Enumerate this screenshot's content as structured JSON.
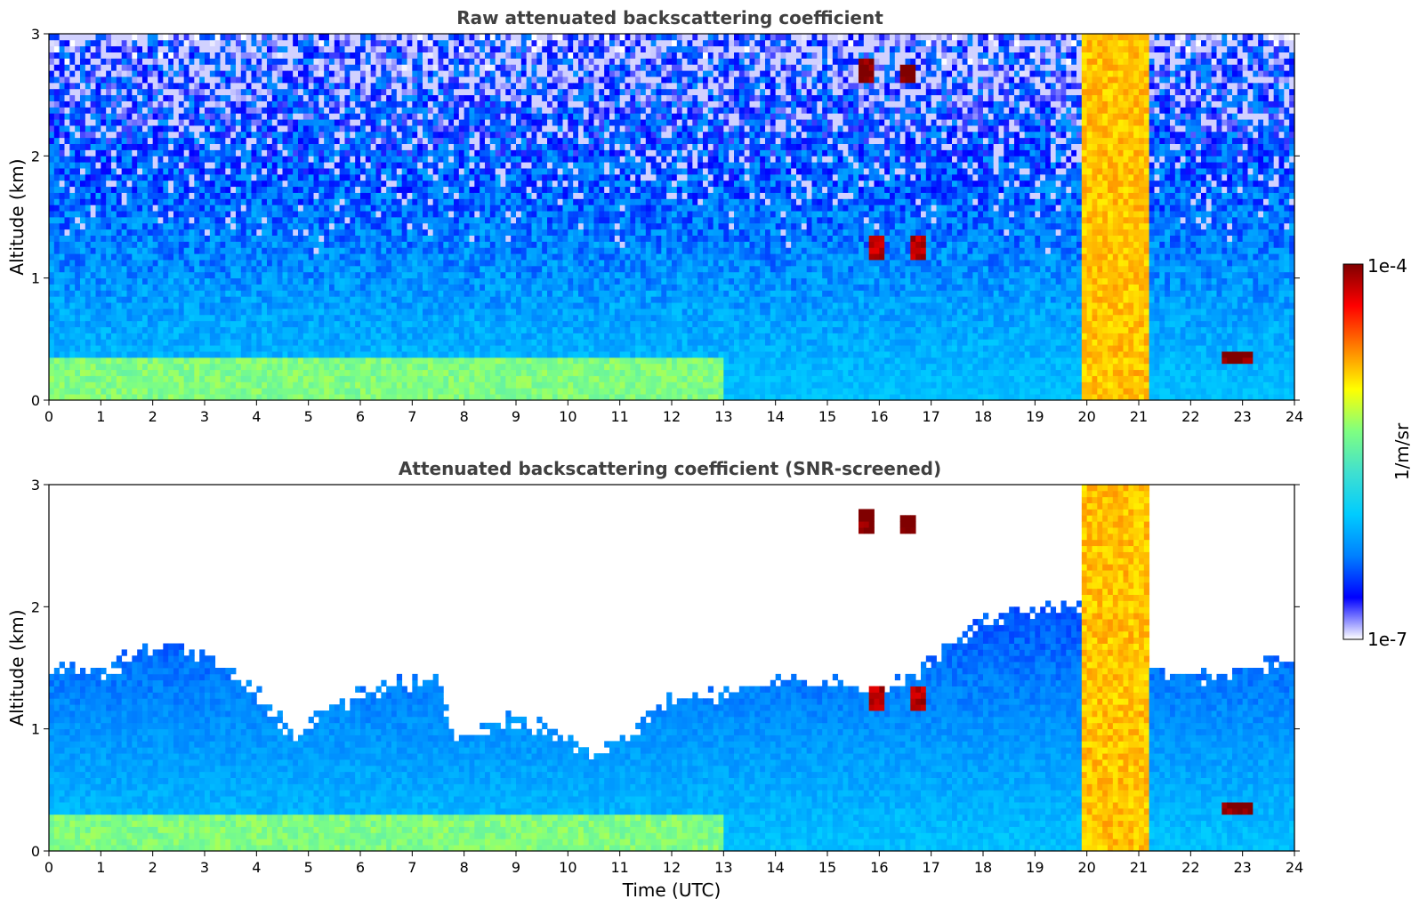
{
  "chart_data": [
    {
      "type": "heatmap",
      "title": "Raw attenuated backscattering coefficient",
      "xlabel": "",
      "ylabel": "Altitude (km)",
      "xlim": [
        0,
        24
      ],
      "ylim": [
        0,
        3
      ],
      "x_ticks": [
        "0",
        "1",
        "2",
        "3",
        "4",
        "5",
        "6",
        "7",
        "8",
        "9",
        "10",
        "11",
        "12",
        "13",
        "14",
        "15",
        "16",
        "17",
        "18",
        "19",
        "20",
        "21",
        "22",
        "23",
        "24"
      ],
      "y_ticks": [
        "0",
        "1",
        "2",
        "3"
      ],
      "grid": false,
      "noise_screened": false,
      "features": [
        {
          "kind": "surface-aerosol-layer",
          "x_range": [
            0,
            13
          ],
          "top_km": 0.35,
          "level": 0.55
        },
        {
          "kind": "elevated-cloud-patch",
          "x_range": [
            15.6,
            15.9
          ],
          "alt_range": [
            2.6,
            2.8
          ],
          "level": 1.0
        },
        {
          "kind": "elevated-cloud-patch",
          "x_range": [
            16.4,
            16.65
          ],
          "alt_range": [
            2.6,
            2.75
          ],
          "level": 1.0
        },
        {
          "kind": "low-cloud-patch",
          "x_range": [
            15.8,
            16.05
          ],
          "alt_range": [
            1.15,
            1.35
          ],
          "level": 0.95
        },
        {
          "kind": "low-cloud-patch",
          "x_range": [
            16.6,
            16.85
          ],
          "alt_range": [
            1.15,
            1.35
          ],
          "level": 0.95
        },
        {
          "kind": "precipitation-column",
          "x_range": [
            19.85,
            21.2
          ],
          "alt_range": [
            0,
            3
          ],
          "level": 0.72
        },
        {
          "kind": "cloud-layer",
          "x_range": [
            22.6,
            23.2
          ],
          "alt_range": [
            0.28,
            0.42
          ],
          "level": 1.0
        }
      ]
    },
    {
      "type": "heatmap",
      "title": "Attenuated backscattering coefficient (SNR-screened)",
      "xlabel": "Time (UTC)",
      "ylabel": "Altitude (km)",
      "xlim": [
        0,
        24
      ],
      "ylim": [
        0,
        3
      ],
      "x_ticks": [
        "0",
        "1",
        "2",
        "3",
        "4",
        "5",
        "6",
        "7",
        "8",
        "9",
        "10",
        "11",
        "12",
        "13",
        "14",
        "15",
        "16",
        "17",
        "18",
        "19",
        "20",
        "21",
        "22",
        "23",
        "24"
      ],
      "y_ticks": [
        "0",
        "1",
        "2",
        "3"
      ],
      "grid": false,
      "noise_screened": true,
      "screen_top_km": [
        [
          0,
          1.5
        ],
        [
          1,
          1.45
        ],
        [
          2,
          1.7
        ],
        [
          3,
          1.6
        ],
        [
          4,
          1.3
        ],
        [
          4.7,
          0.95
        ],
        [
          5.5,
          1.2
        ],
        [
          6.5,
          1.35
        ],
        [
          7.5,
          1.4
        ],
        [
          7.8,
          0.9
        ],
        [
          9,
          1.1
        ],
        [
          9.8,
          0.95
        ],
        [
          10.5,
          0.8
        ],
        [
          11,
          0.9
        ],
        [
          12,
          1.25
        ],
        [
          13,
          1.3
        ],
        [
          14,
          1.4
        ],
        [
          15,
          1.4
        ],
        [
          16,
          1.3
        ],
        [
          17,
          1.55
        ],
        [
          18,
          1.9
        ],
        [
          19,
          2.0
        ],
        [
          20,
          2.0
        ],
        [
          21.3,
          1.5
        ],
        [
          22,
          1.4
        ],
        [
          23,
          1.5
        ],
        [
          24,
          1.55
        ]
      ],
      "features": [
        {
          "kind": "surface-aerosol-layer",
          "x_range": [
            0,
            13
          ],
          "top_km": 0.3,
          "level": 0.55
        },
        {
          "kind": "elevated-cloud-patch",
          "x_range": [
            15.6,
            15.9
          ],
          "alt_range": [
            2.6,
            2.8
          ],
          "level": 1.0
        },
        {
          "kind": "elevated-cloud-patch",
          "x_range": [
            16.4,
            16.65
          ],
          "alt_range": [
            2.6,
            2.75
          ],
          "level": 1.0
        },
        {
          "kind": "low-cloud-patch",
          "x_range": [
            15.8,
            16.05
          ],
          "alt_range": [
            1.15,
            1.35
          ],
          "level": 0.95
        },
        {
          "kind": "low-cloud-patch",
          "x_range": [
            16.6,
            16.85
          ],
          "alt_range": [
            1.15,
            1.35
          ],
          "level": 0.95
        },
        {
          "kind": "precipitation-column",
          "x_range": [
            19.85,
            21.2
          ],
          "alt_range": [
            0,
            3
          ],
          "level": 0.72
        },
        {
          "kind": "cloud-layer",
          "x_range": [
            22.6,
            23.2
          ],
          "alt_range": [
            0.28,
            0.42
          ],
          "level": 1.0
        }
      ]
    }
  ],
  "colorbar": {
    "label": "1/m/sr",
    "max_label": "1e-4",
    "min_label": "1e-7",
    "scale": "log",
    "colormap": [
      "#ffffff",
      "#0000ff",
      "#0080ff",
      "#00ccff",
      "#40e0d0",
      "#80ff80",
      "#ffff00",
      "#ff8000",
      "#ff0000",
      "#800000"
    ]
  }
}
